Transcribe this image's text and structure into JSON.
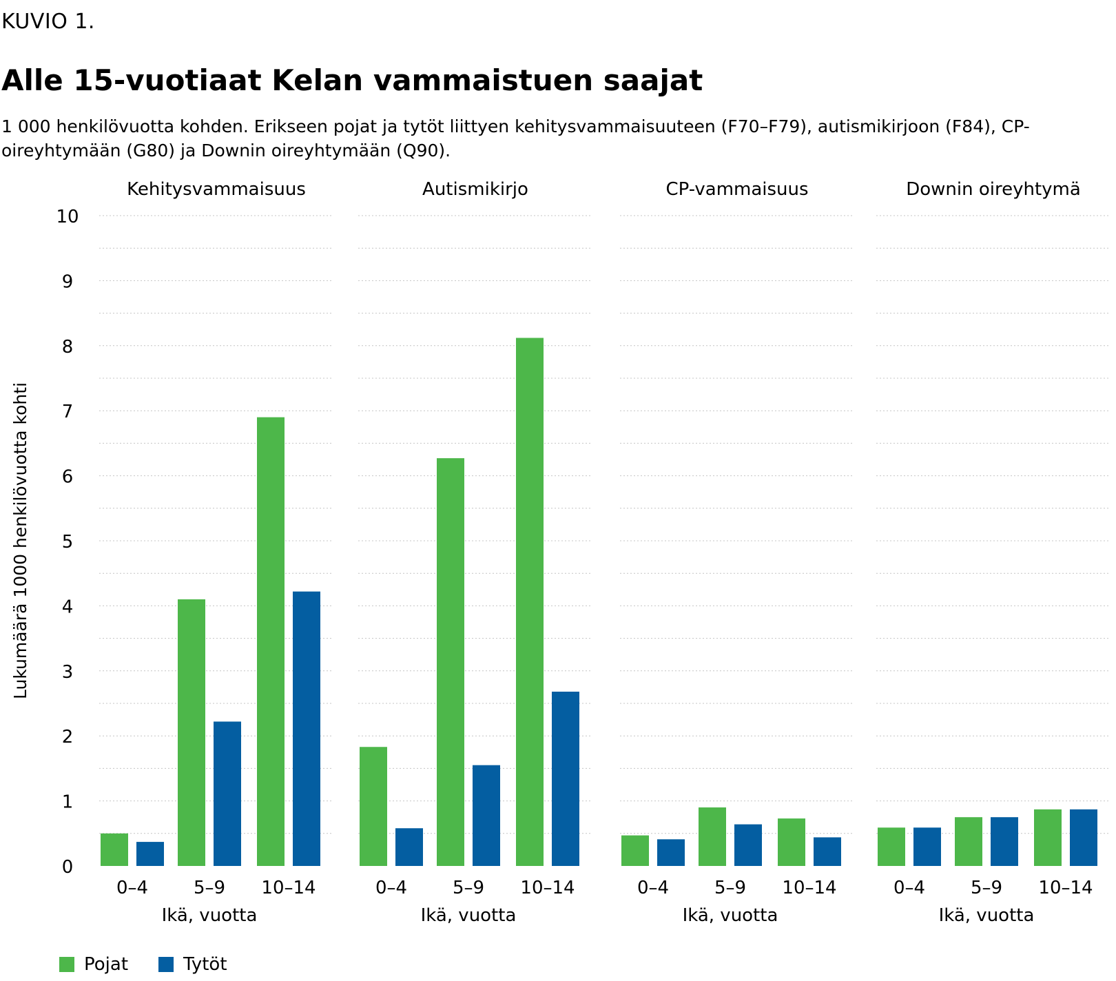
{
  "header": {
    "figure_label": "KUVIO 1.",
    "title": "Alle 15-vuotiaat Kelan vammaistuen saajat",
    "subtitle": "1 000 henkilövuotta kohden. Erikseen pojat ja tytöt liittyen kehitysvammaisuuteen (F70–F79), autismikirjoon (F84), CP-oireyhtymään (G80) ja Downin oireyhtymään (Q90)."
  },
  "colors": {
    "pojat": "#4db74a",
    "tytot": "#045ea1",
    "grid": "#c4c4c4"
  },
  "legend": {
    "items": [
      {
        "key": "pojat",
        "label": "Pojat"
      },
      {
        "key": "tytot",
        "label": "Tytöt"
      }
    ]
  },
  "chart_data": {
    "type": "bar",
    "ylabel": "Lukumäärä 1000 henkilövuotta kohti",
    "xlabel": "Ikä, vuotta",
    "ylim": [
      0,
      10
    ],
    "yticks": [
      0,
      1,
      2,
      3,
      4,
      5,
      6,
      7,
      8,
      9,
      10
    ],
    "grid": true,
    "categories": [
      "0–4",
      "5–9",
      "10–14"
    ],
    "panels": [
      {
        "title": "Kehitysvammaisuus",
        "series": [
          {
            "name": "Pojat",
            "values": [
              0.5,
              4.1,
              6.9
            ]
          },
          {
            "name": "Tytöt",
            "values": [
              0.37,
              2.22,
              4.22
            ]
          }
        ]
      },
      {
        "title": "Autismikirjo",
        "series": [
          {
            "name": "Pojat",
            "values": [
              1.83,
              6.27,
              8.12
            ]
          },
          {
            "name": "Tytöt",
            "values": [
              0.58,
              1.55,
              2.68
            ]
          }
        ]
      },
      {
        "title": "CP-vammaisuus",
        "series": [
          {
            "name": "Pojat",
            "values": [
              0.47,
              0.9,
              0.73
            ]
          },
          {
            "name": "Tytöt",
            "values": [
              0.41,
              0.64,
              0.44
            ]
          }
        ]
      },
      {
        "title": "Downin oireyhtymä",
        "series": [
          {
            "name": "Pojat",
            "values": [
              0.59,
              0.75,
              0.87
            ]
          },
          {
            "name": "Tytöt",
            "values": [
              0.59,
              0.75,
              0.87
            ]
          }
        ]
      }
    ]
  }
}
